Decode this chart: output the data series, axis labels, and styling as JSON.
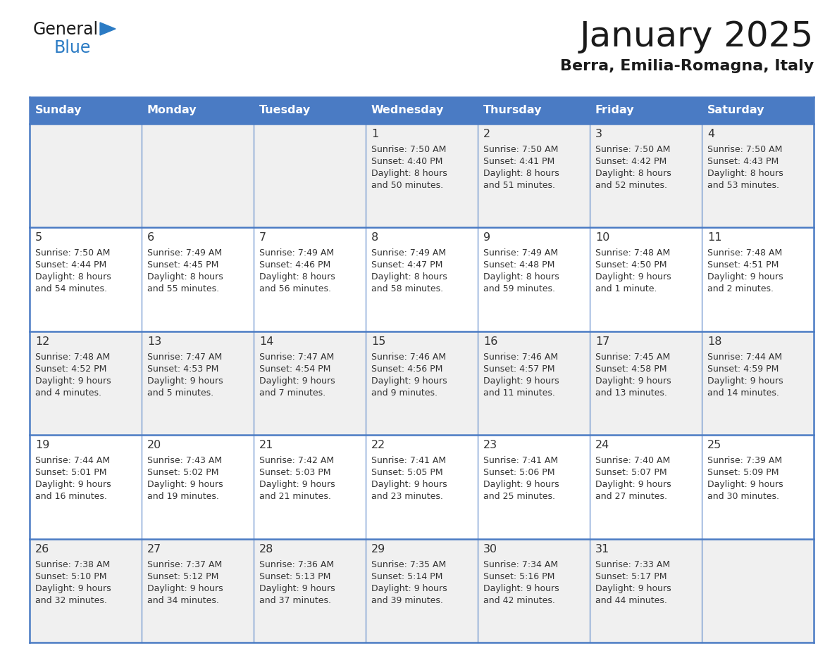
{
  "title": "January 2025",
  "subtitle": "Berra, Emilia-Romagna, Italy",
  "days_of_week": [
    "Sunday",
    "Monday",
    "Tuesday",
    "Wednesday",
    "Thursday",
    "Friday",
    "Saturday"
  ],
  "header_bg": "#4A7BC4",
  "header_text_color": "#FFFFFF",
  "cell_bg_odd": "#F0F0F0",
  "cell_bg_even": "#FFFFFF",
  "border_color": "#4A7BC4",
  "text_color": "#333333",
  "title_color": "#1a1a1a",
  "subtitle_color": "#1a1a1a",
  "logo_general_color": "#1a1a1a",
  "logo_blue_color": "#2B7BC4",
  "calendar": [
    [
      {
        "day": null,
        "sunrise": null,
        "sunset": null,
        "daylight": null
      },
      {
        "day": null,
        "sunrise": null,
        "sunset": null,
        "daylight": null
      },
      {
        "day": null,
        "sunrise": null,
        "sunset": null,
        "daylight": null
      },
      {
        "day": 1,
        "sunrise": "7:50 AM",
        "sunset": "4:40 PM",
        "daylight": "8 hours\nand 50 minutes."
      },
      {
        "day": 2,
        "sunrise": "7:50 AM",
        "sunset": "4:41 PM",
        "daylight": "8 hours\nand 51 minutes."
      },
      {
        "day": 3,
        "sunrise": "7:50 AM",
        "sunset": "4:42 PM",
        "daylight": "8 hours\nand 52 minutes."
      },
      {
        "day": 4,
        "sunrise": "7:50 AM",
        "sunset": "4:43 PM",
        "daylight": "8 hours\nand 53 minutes."
      }
    ],
    [
      {
        "day": 5,
        "sunrise": "7:50 AM",
        "sunset": "4:44 PM",
        "daylight": "8 hours\nand 54 minutes."
      },
      {
        "day": 6,
        "sunrise": "7:49 AM",
        "sunset": "4:45 PM",
        "daylight": "8 hours\nand 55 minutes."
      },
      {
        "day": 7,
        "sunrise": "7:49 AM",
        "sunset": "4:46 PM",
        "daylight": "8 hours\nand 56 minutes."
      },
      {
        "day": 8,
        "sunrise": "7:49 AM",
        "sunset": "4:47 PM",
        "daylight": "8 hours\nand 58 minutes."
      },
      {
        "day": 9,
        "sunrise": "7:49 AM",
        "sunset": "4:48 PM",
        "daylight": "8 hours\nand 59 minutes."
      },
      {
        "day": 10,
        "sunrise": "7:48 AM",
        "sunset": "4:50 PM",
        "daylight": "9 hours\nand 1 minute."
      },
      {
        "day": 11,
        "sunrise": "7:48 AM",
        "sunset": "4:51 PM",
        "daylight": "9 hours\nand 2 minutes."
      }
    ],
    [
      {
        "day": 12,
        "sunrise": "7:48 AM",
        "sunset": "4:52 PM",
        "daylight": "9 hours\nand 4 minutes."
      },
      {
        "day": 13,
        "sunrise": "7:47 AM",
        "sunset": "4:53 PM",
        "daylight": "9 hours\nand 5 minutes."
      },
      {
        "day": 14,
        "sunrise": "7:47 AM",
        "sunset": "4:54 PM",
        "daylight": "9 hours\nand 7 minutes."
      },
      {
        "day": 15,
        "sunrise": "7:46 AM",
        "sunset": "4:56 PM",
        "daylight": "9 hours\nand 9 minutes."
      },
      {
        "day": 16,
        "sunrise": "7:46 AM",
        "sunset": "4:57 PM",
        "daylight": "9 hours\nand 11 minutes."
      },
      {
        "day": 17,
        "sunrise": "7:45 AM",
        "sunset": "4:58 PM",
        "daylight": "9 hours\nand 13 minutes."
      },
      {
        "day": 18,
        "sunrise": "7:44 AM",
        "sunset": "4:59 PM",
        "daylight": "9 hours\nand 14 minutes."
      }
    ],
    [
      {
        "day": 19,
        "sunrise": "7:44 AM",
        "sunset": "5:01 PM",
        "daylight": "9 hours\nand 16 minutes."
      },
      {
        "day": 20,
        "sunrise": "7:43 AM",
        "sunset": "5:02 PM",
        "daylight": "9 hours\nand 19 minutes."
      },
      {
        "day": 21,
        "sunrise": "7:42 AM",
        "sunset": "5:03 PM",
        "daylight": "9 hours\nand 21 minutes."
      },
      {
        "day": 22,
        "sunrise": "7:41 AM",
        "sunset": "5:05 PM",
        "daylight": "9 hours\nand 23 minutes."
      },
      {
        "day": 23,
        "sunrise": "7:41 AM",
        "sunset": "5:06 PM",
        "daylight": "9 hours\nand 25 minutes."
      },
      {
        "day": 24,
        "sunrise": "7:40 AM",
        "sunset": "5:07 PM",
        "daylight": "9 hours\nand 27 minutes."
      },
      {
        "day": 25,
        "sunrise": "7:39 AM",
        "sunset": "5:09 PM",
        "daylight": "9 hours\nand 30 minutes."
      }
    ],
    [
      {
        "day": 26,
        "sunrise": "7:38 AM",
        "sunset": "5:10 PM",
        "daylight": "9 hours\nand 32 minutes."
      },
      {
        "day": 27,
        "sunrise": "7:37 AM",
        "sunset": "5:12 PM",
        "daylight": "9 hours\nand 34 minutes."
      },
      {
        "day": 28,
        "sunrise": "7:36 AM",
        "sunset": "5:13 PM",
        "daylight": "9 hours\nand 37 minutes."
      },
      {
        "day": 29,
        "sunrise": "7:35 AM",
        "sunset": "5:14 PM",
        "daylight": "9 hours\nand 39 minutes."
      },
      {
        "day": 30,
        "sunrise": "7:34 AM",
        "sunset": "5:16 PM",
        "daylight": "9 hours\nand 42 minutes."
      },
      {
        "day": 31,
        "sunrise": "7:33 AM",
        "sunset": "5:17 PM",
        "daylight": "9 hours\nand 44 minutes."
      },
      {
        "day": null,
        "sunrise": null,
        "sunset": null,
        "daylight": null
      }
    ]
  ]
}
